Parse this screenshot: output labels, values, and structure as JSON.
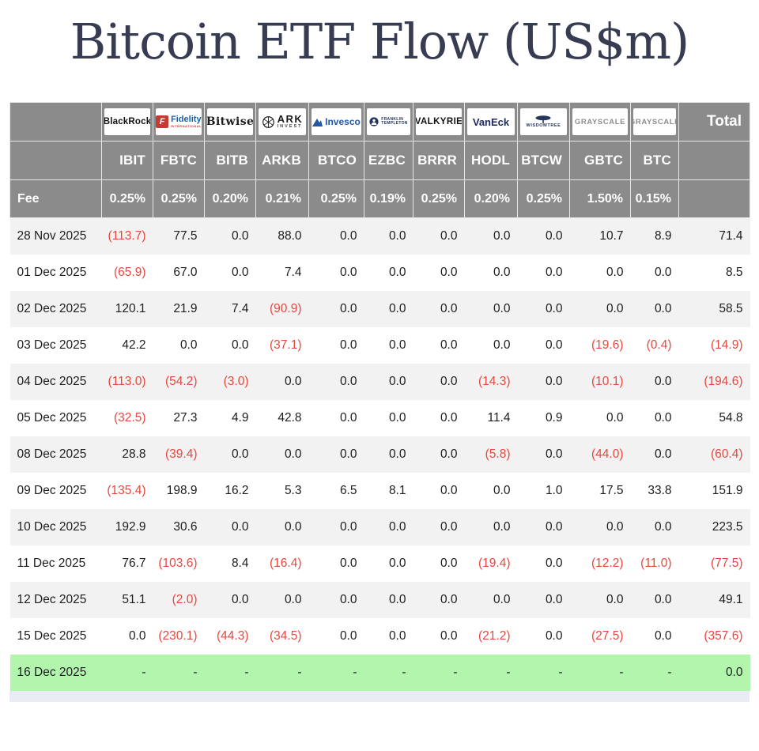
{
  "title": "Bitcoin ETF Flow (US$m)",
  "colors": {
    "header_bg": "#8b8b8b",
    "negative_text": "#e8473f",
    "alt_row_bg": "#f2f2f3",
    "highlight_row_bg": "#b2f6ae",
    "title_text": "#383c52"
  },
  "table": {
    "fee_label": "Fee",
    "total_label": "Total",
    "providers": [
      {
        "brand": "blackrock",
        "logo": "BlackRock",
        "logo_sub": "",
        "ticker": "IBIT",
        "fee": "0.25%"
      },
      {
        "brand": "fidelity",
        "logo": "Fidelity",
        "logo_sub": "INTERNATIONAL",
        "ticker": "FBTC",
        "fee": "0.25%"
      },
      {
        "brand": "bitwise",
        "logo": "Bitwise",
        "logo_sub": "",
        "ticker": "BITB",
        "fee": "0.20%"
      },
      {
        "brand": "ark",
        "logo": "ARK",
        "logo_sub": "INVEST",
        "ticker": "ARKB",
        "fee": "0.21%"
      },
      {
        "brand": "invesco",
        "logo": "Invesco",
        "logo_sub": "",
        "ticker": "BTCO",
        "fee": "0.25%"
      },
      {
        "brand": "franklin",
        "logo": "FRANKLIN",
        "logo_sub": "TEMPLETON",
        "ticker": "EZBC",
        "fee": "0.19%"
      },
      {
        "brand": "valkyrie",
        "logo": "VALKYRIE",
        "logo_sub": "",
        "ticker": "BRRR",
        "fee": "0.25%"
      },
      {
        "brand": "vaneck",
        "logo": "VanEck",
        "logo_sub": "",
        "ticker": "HODL",
        "fee": "0.20%"
      },
      {
        "brand": "wisdomtree",
        "logo": "WISDOMTREE",
        "logo_sub": "",
        "ticker": "BTCW",
        "fee": "0.25%"
      },
      {
        "brand": "grayscale",
        "logo": "GRAYSCALE",
        "logo_sub": "",
        "ticker": "GBTC",
        "fee": "1.50%"
      },
      {
        "brand": "grayscale",
        "logo": "GRAYSCALE",
        "logo_sub": "",
        "ticker": "BTC",
        "fee": "0.15%"
      }
    ]
  },
  "chart_data": {
    "type": "table",
    "title": "Bitcoin ETF Flow (US$m)",
    "columns": [
      "IBIT",
      "FBTC",
      "BITB",
      "ARKB",
      "BTCO",
      "EZBC",
      "BRRR",
      "HODL",
      "BTCW",
      "GBTC",
      "BTC",
      "Total"
    ],
    "fees": [
      "0.25%",
      "0.25%",
      "0.20%",
      "0.21%",
      "0.25%",
      "0.19%",
      "0.25%",
      "0.20%",
      "0.25%",
      "1.50%",
      "0.15%"
    ],
    "negative_format": "parentheses_red",
    "rows": [
      {
        "date": "28 Nov 2025",
        "values": [
          -113.7,
          77.5,
          0.0,
          88.0,
          0.0,
          0.0,
          0.0,
          0.0,
          0.0,
          10.7,
          8.9
        ],
        "total": 71.4,
        "highlight": false
      },
      {
        "date": "01 Dec 2025",
        "values": [
          -65.9,
          67.0,
          0.0,
          7.4,
          0.0,
          0.0,
          0.0,
          0.0,
          0.0,
          0.0,
          0.0
        ],
        "total": 8.5,
        "highlight": false
      },
      {
        "date": "02 Dec 2025",
        "values": [
          120.1,
          21.9,
          7.4,
          -90.9,
          0.0,
          0.0,
          0.0,
          0.0,
          0.0,
          0.0,
          0.0
        ],
        "total": 58.5,
        "highlight": false
      },
      {
        "date": "03 Dec 2025",
        "values": [
          42.2,
          0.0,
          0.0,
          -37.1,
          0.0,
          0.0,
          0.0,
          0.0,
          0.0,
          -19.6,
          -0.4
        ],
        "total": -14.9,
        "highlight": false
      },
      {
        "date": "04 Dec 2025",
        "values": [
          -113.0,
          -54.2,
          -3.0,
          0.0,
          0.0,
          0.0,
          0.0,
          -14.3,
          0.0,
          -10.1,
          0.0
        ],
        "total": -194.6,
        "highlight": false
      },
      {
        "date": "05 Dec 2025",
        "values": [
          -32.5,
          27.3,
          4.9,
          42.8,
          0.0,
          0.0,
          0.0,
          11.4,
          0.9,
          0.0,
          0.0
        ],
        "total": 54.8,
        "highlight": false
      },
      {
        "date": "08 Dec 2025",
        "values": [
          28.8,
          -39.4,
          0.0,
          0.0,
          0.0,
          0.0,
          0.0,
          -5.8,
          0.0,
          -44.0,
          0.0
        ],
        "total": -60.4,
        "highlight": false
      },
      {
        "date": "09 Dec 2025",
        "values": [
          -135.4,
          198.9,
          16.2,
          5.3,
          6.5,
          8.1,
          0.0,
          0.0,
          1.0,
          17.5,
          33.8
        ],
        "total": 151.9,
        "highlight": false
      },
      {
        "date": "10 Dec 2025",
        "values": [
          192.9,
          30.6,
          0.0,
          0.0,
          0.0,
          0.0,
          0.0,
          0.0,
          0.0,
          0.0,
          0.0
        ],
        "total": 223.5,
        "highlight": false
      },
      {
        "date": "11 Dec 2025",
        "values": [
          76.7,
          -103.6,
          8.4,
          -16.4,
          0.0,
          0.0,
          0.0,
          -19.4,
          0.0,
          -12.2,
          -11.0
        ],
        "total": -77.5,
        "highlight": false
      },
      {
        "date": "12 Dec 2025",
        "values": [
          51.1,
          -2.0,
          0.0,
          0.0,
          0.0,
          0.0,
          0.0,
          0.0,
          0.0,
          0.0,
          0.0
        ],
        "total": 49.1,
        "highlight": false
      },
      {
        "date": "15 Dec 2025",
        "values": [
          0.0,
          -230.1,
          -44.3,
          -34.5,
          0.0,
          0.0,
          0.0,
          -21.2,
          0.0,
          -27.5,
          0.0
        ],
        "total": -357.6,
        "highlight": false
      },
      {
        "date": "16 Dec 2025",
        "values": [
          null,
          null,
          null,
          null,
          null,
          null,
          null,
          null,
          null,
          null,
          null
        ],
        "total": 0.0,
        "highlight": true
      }
    ]
  }
}
